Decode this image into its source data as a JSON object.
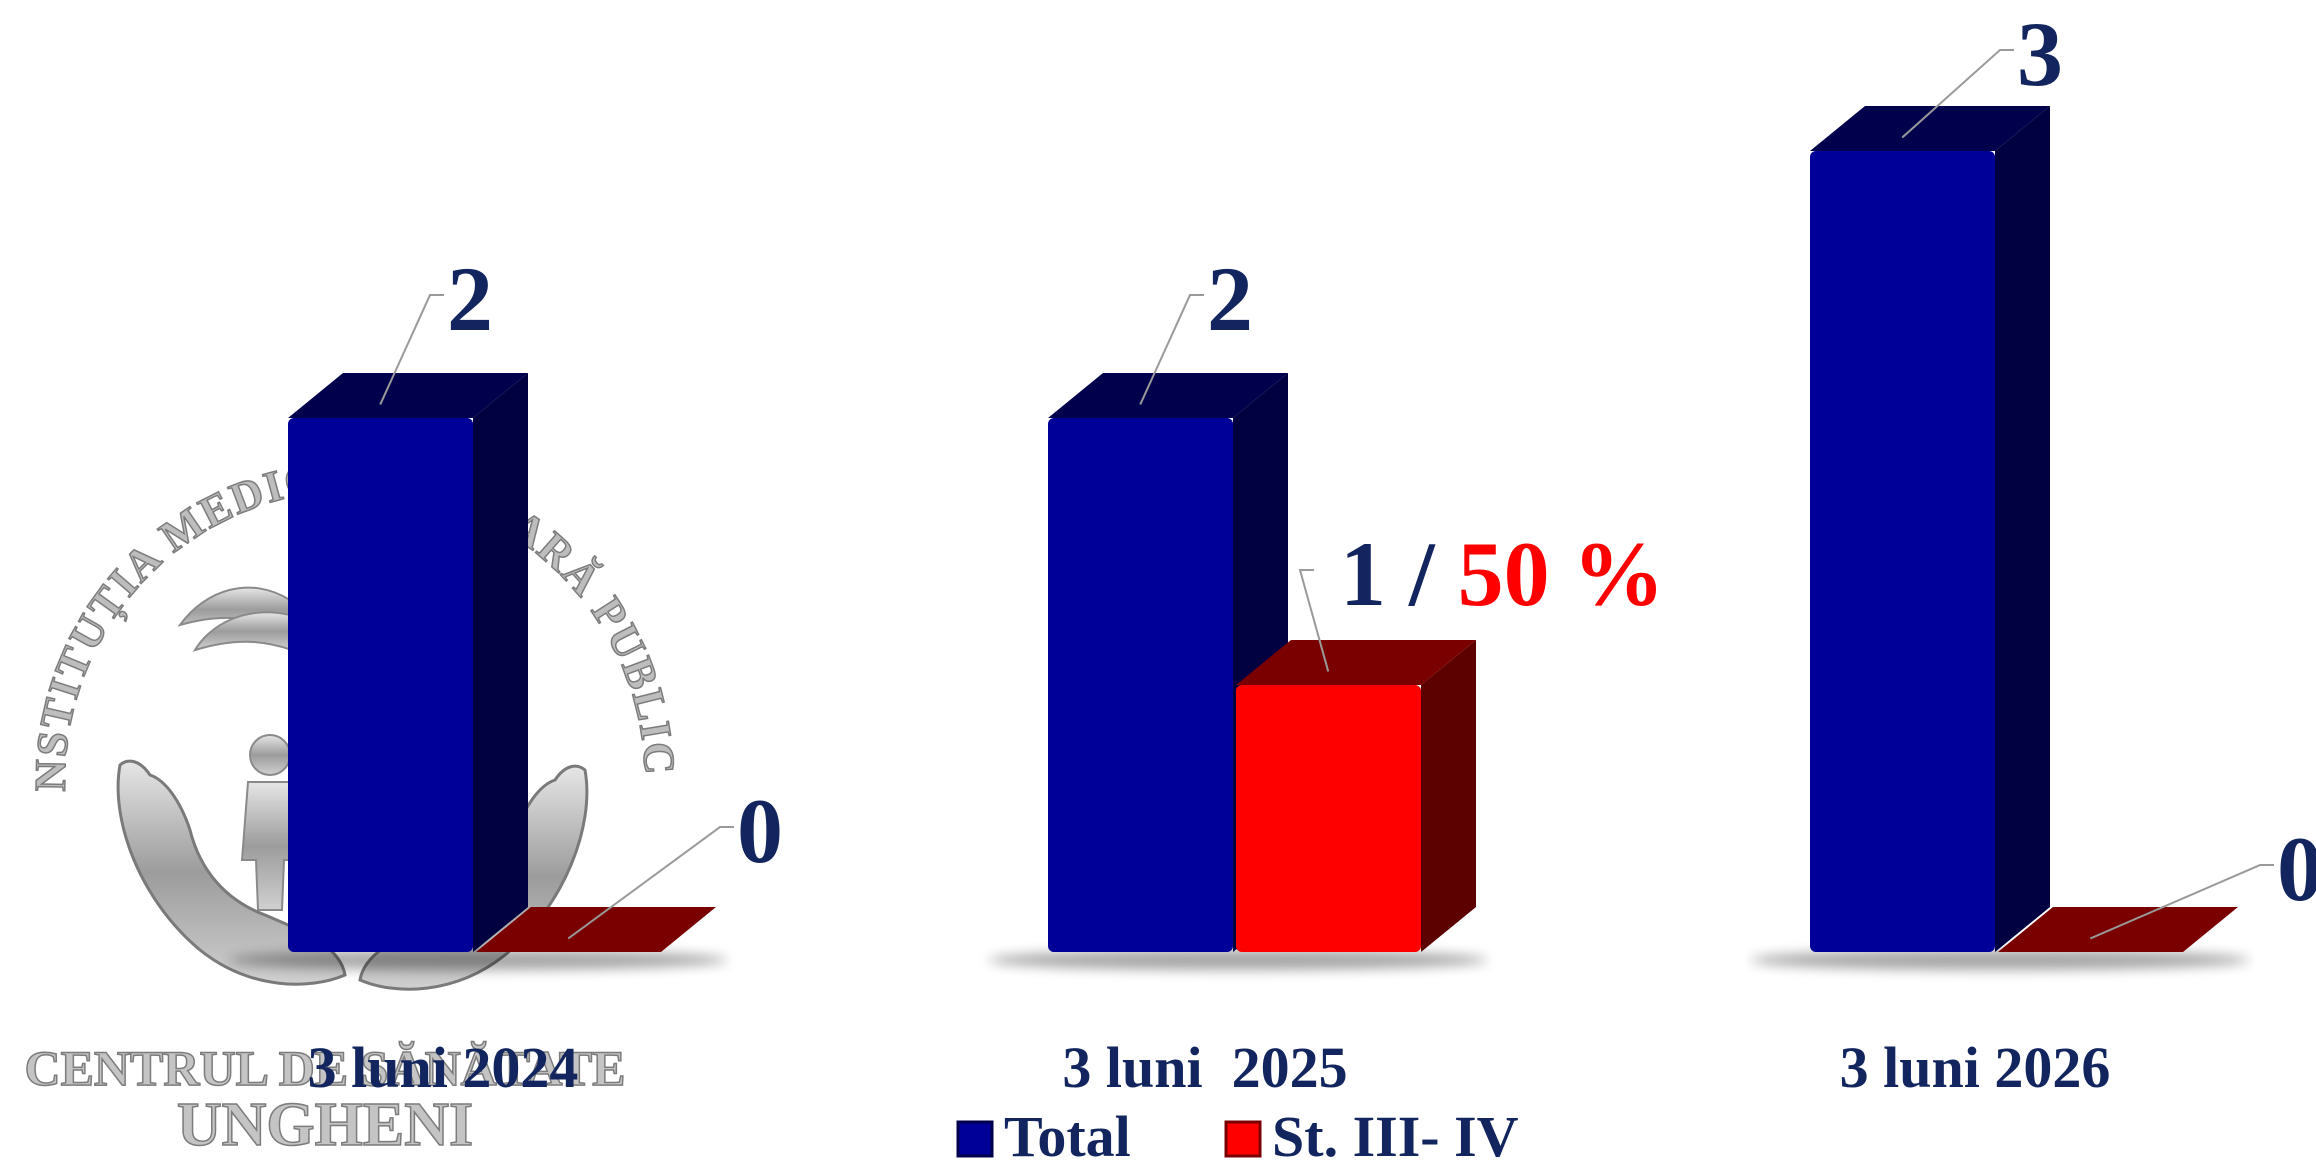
{
  "logo": {
    "arc_text": "INSTITUȚIA MEDICO-SANITARĂ PUBLICĂ",
    "line1": "CENTRUL DE SĂNĂTATE",
    "line2": "UNGHENI",
    "icon": "hands-with-person-and-wings-icon"
  },
  "chart_data": {
    "type": "bar",
    "style": "3d-clustered",
    "categories": [
      "3 luni 2024",
      "3 luni  2025",
      "3 luni 2026"
    ],
    "series": [
      {
        "name": "Total",
        "values": [
          2,
          2,
          3
        ],
        "color": "#000099",
        "labels": [
          "2",
          "2",
          "3"
        ]
      },
      {
        "name": "St. III- IV",
        "values": [
          0,
          1,
          0
        ],
        "color": "#ff0000",
        "labels": [
          "0",
          "50 %",
          "0"
        ]
      }
    ],
    "combined_label_prefix": "1 /",
    "ylim": [
      0,
      3.3
    ],
    "grid": false,
    "legend": "bottom-center",
    "colors": {
      "total_front": "#000099",
      "total_side": "#000040",
      "total_top": "#00004d",
      "st_front": "#ff0000",
      "st_side": "#5c0000",
      "st_top": "#7a0000",
      "label_blue": "#12255e",
      "label_red": "#ff0000",
      "leader": "#9a9a9a"
    }
  }
}
